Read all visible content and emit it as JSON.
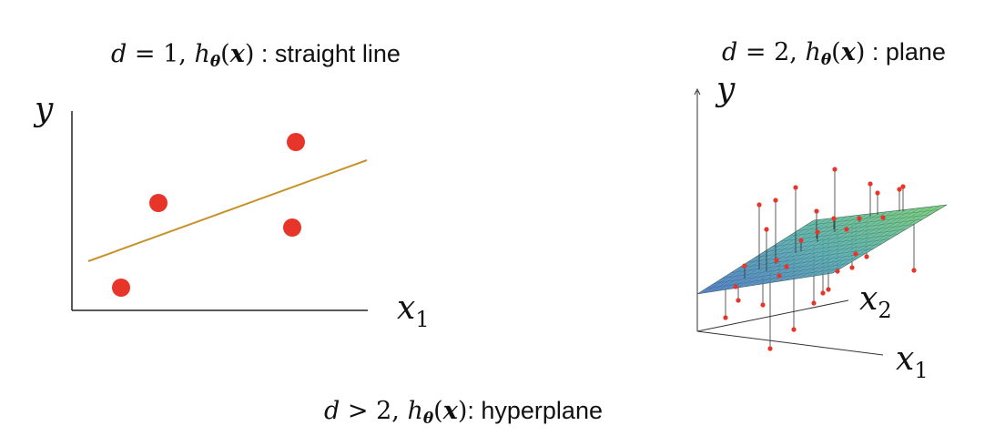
{
  "captions": {
    "left": {
      "d": "d",
      "eq": " = 1, ",
      "h": "h",
      "theta": "θ",
      "x": "x",
      "text": " : straight line"
    },
    "right": {
      "d": "d",
      "eq": " = 2, ",
      "h": "h",
      "theta": "θ",
      "x": "x",
      "text": " : plane"
    },
    "bottom": {
      "d": "d",
      "eq": " > 2, ",
      "h": "h",
      "theta": "θ",
      "x": "x",
      "text": ": hyperplane"
    }
  },
  "left_plot": {
    "y_label": "y",
    "x_label": "x",
    "x_subscript": "1",
    "line_color": "#c8922a",
    "point_color": "#e8352a"
  },
  "right_plot": {
    "y_label": "y",
    "x1_label": "x",
    "x1_subscript": "1",
    "x2_label": "x",
    "x2_subscript": "2",
    "plane_colors": [
      "#4a78c8",
      "#58b0b0",
      "#78d070"
    ],
    "point_color": "#e8352a"
  }
}
